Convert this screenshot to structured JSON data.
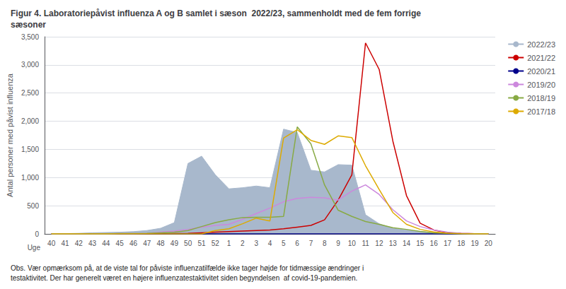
{
  "chart_data": {
    "type": "line",
    "title": "Figur 4. Laboratoriepåvist influenza A og B samlet i sæson  2022/23, sammenholdt med de fem forrige\nsæsoner",
    "xlabel": "Uge",
    "ylabel": "Antal personer med påvist influenza",
    "annotations": [
      "Obs. Vær opmærksom på, at de viste tal for påviste influenzatilfælde ikke tager højde for tidmæssige ændringer i\ntestaktivitet. Der har generelt været en højere influenzatestaktivitet siden begyndelsen  af covid-19-pandemien."
    ],
    "categories": [
      "40",
      "41",
      "42",
      "43",
      "44",
      "45",
      "46",
      "47",
      "48",
      "49",
      "50",
      "51",
      "52",
      "1",
      "2",
      "3",
      "4",
      "5",
      "6",
      "7",
      "8",
      "9",
      "10",
      "11",
      "12",
      "13",
      "14",
      "15",
      "16",
      "17",
      "18",
      "19",
      "20"
    ],
    "ylim": [
      0,
      3500
    ],
    "yticks": [
      0,
      500,
      1000,
      1500,
      2000,
      2500,
      3000,
      3500
    ],
    "grid": true,
    "legend": "right",
    "series": [
      {
        "name": "2022/23",
        "type": "area",
        "color": "#a8b8cc",
        "values": [
          5,
          5,
          10,
          20,
          25,
          30,
          40,
          60,
          100,
          200,
          1250,
          1380,
          1050,
          800,
          820,
          850,
          820,
          1860,
          1800,
          1130,
          1100,
          1230,
          1220,
          340,
          180,
          100,
          70,
          40,
          20,
          8,
          5,
          2,
          0
        ]
      },
      {
        "name": "2021/22",
        "type": "line",
        "color": "#cc0000",
        "values": [
          0,
          0,
          0,
          0,
          0,
          0,
          0,
          0,
          0,
          5,
          10,
          20,
          30,
          40,
          50,
          60,
          70,
          90,
          120,
          150,
          250,
          600,
          1050,
          3390,
          2920,
          1650,
          680,
          190,
          70,
          20,
          8,
          2,
          0
        ]
      },
      {
        "name": "2020/21",
        "type": "line",
        "color": "#00008b",
        "values": [
          0,
          0,
          0,
          0,
          0,
          0,
          0,
          0,
          0,
          0,
          0,
          0,
          0,
          0,
          0,
          0,
          0,
          0,
          0,
          0,
          0,
          0,
          0,
          0,
          0,
          0,
          0,
          0,
          0,
          0,
          0,
          0,
          0
        ]
      },
      {
        "name": "2019/20",
        "type": "line",
        "color": "#cc88dd",
        "values": [
          0,
          0,
          0,
          0,
          0,
          5,
          5,
          10,
          30,
          50,
          80,
          120,
          150,
          170,
          260,
          360,
          460,
          570,
          630,
          650,
          640,
          600,
          760,
          870,
          700,
          430,
          230,
          130,
          70,
          30,
          8,
          3,
          0
        ]
      },
      {
        "name": "2018/19",
        "type": "line",
        "color": "#88aa44",
        "values": [
          0,
          0,
          0,
          0,
          0,
          5,
          5,
          10,
          20,
          30,
          60,
          130,
          200,
          250,
          290,
          295,
          295,
          310,
          1900,
          1600,
          870,
          420,
          310,
          220,
          170,
          110,
          80,
          45,
          20,
          8,
          3,
          0,
          0
        ]
      },
      {
        "name": "2017/18",
        "type": "line",
        "color": "#ddaa00",
        "values": [
          0,
          0,
          0,
          0,
          0,
          0,
          0,
          0,
          0,
          0,
          0,
          0,
          60,
          90,
          180,
          280,
          230,
          1700,
          1850,
          1660,
          1590,
          1740,
          1710,
          1210,
          790,
          380,
          170,
          80,
          35,
          12,
          3,
          0,
          0
        ]
      }
    ]
  }
}
